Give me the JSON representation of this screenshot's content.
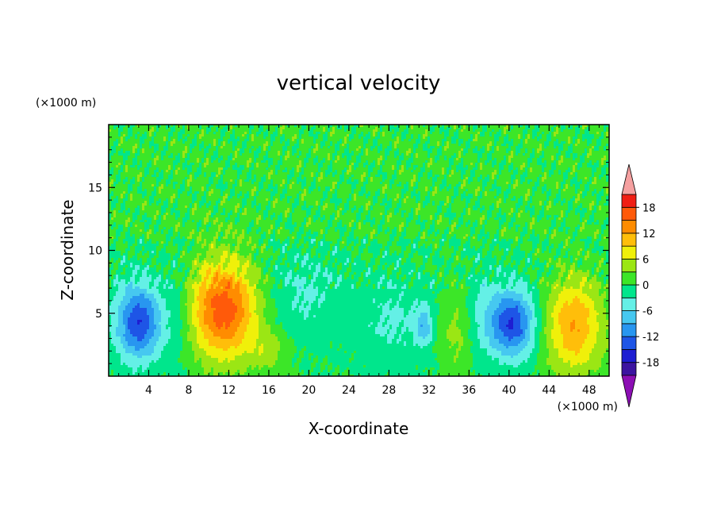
{
  "chart_data": {
    "type": "heatmap",
    "title": "vertical velocity",
    "xlabel": "X-coordinate",
    "ylabel": "Z-coordinate",
    "x_unit": "(×1000 m)",
    "y_unit": "(×1000 m)",
    "xlim": [
      0,
      50
    ],
    "ylim": [
      0,
      20
    ],
    "x_ticks": [
      4,
      8,
      12,
      16,
      20,
      24,
      28,
      32,
      36,
      40,
      44,
      48
    ],
    "y_ticks": [
      5,
      10,
      15
    ],
    "colorbar": {
      "levels": [
        -21,
        -18,
        -15,
        -12,
        -9,
        -6,
        -3,
        0,
        3,
        6,
        9,
        12,
        15,
        18,
        21
      ],
      "tick_values": [
        18,
        12,
        6,
        0,
        -6,
        -12,
        -18
      ],
      "tick_labels": [
        "18",
        "12",
        "6",
        "0",
        "-6",
        "-12",
        "-18"
      ],
      "colors": [
        "#8c0fb4",
        "#3c14a0",
        "#1e1ed2",
        "#1e55e6",
        "#2896f0",
        "#46c8f0",
        "#64f0e6",
        "#00e68c",
        "#3ce628",
        "#9be614",
        "#f0f00a",
        "#ffbe0a",
        "#ff8c00",
        "#ff5a0a",
        "#f01e14",
        "#f5a0a0"
      ],
      "under_color": "#8c0fb4",
      "over_color": "#f5a0a0"
    },
    "features": [
      {
        "x": 3,
        "z": 4.3,
        "sx": 1.6,
        "sz": 2.1,
        "w": -15
      },
      {
        "x": 11.5,
        "z": 5.3,
        "sx": 2.4,
        "sz": 2.8,
        "w": 17
      },
      {
        "x": 40.3,
        "z": 4.2,
        "sx": 1.6,
        "sz": 1.9,
        "w": -15
      },
      {
        "x": 46.5,
        "z": 4.0,
        "sx": 2.0,
        "sz": 2.7,
        "w": 12
      },
      {
        "x": 34.6,
        "z": 3.5,
        "sx": 1.1,
        "sz": 2.4,
        "w": 4
      },
      {
        "x": 16.0,
        "z": 2.0,
        "sx": 1.3,
        "sz": 1.2,
        "w": 4
      },
      {
        "x": 31.5,
        "z": 4.0,
        "sx": 0.6,
        "sz": 1.1,
        "w": -7
      },
      {
        "x": 19.5,
        "z": 6.5,
        "sx": 2.8,
        "sz": 2.3,
        "w": -3.5
      },
      {
        "x": 28.5,
        "z": 4.5,
        "sx": 2.5,
        "sz": 2.5,
        "w": -3.5
      },
      {
        "x": 7.0,
        "z": 5.0,
        "sx": 1.0,
        "sz": 3.0,
        "w": -3
      },
      {
        "x": 37.5,
        "z": 5.0,
        "sx": 1.2,
        "sz": 2.5,
        "w": -3
      }
    ]
  }
}
